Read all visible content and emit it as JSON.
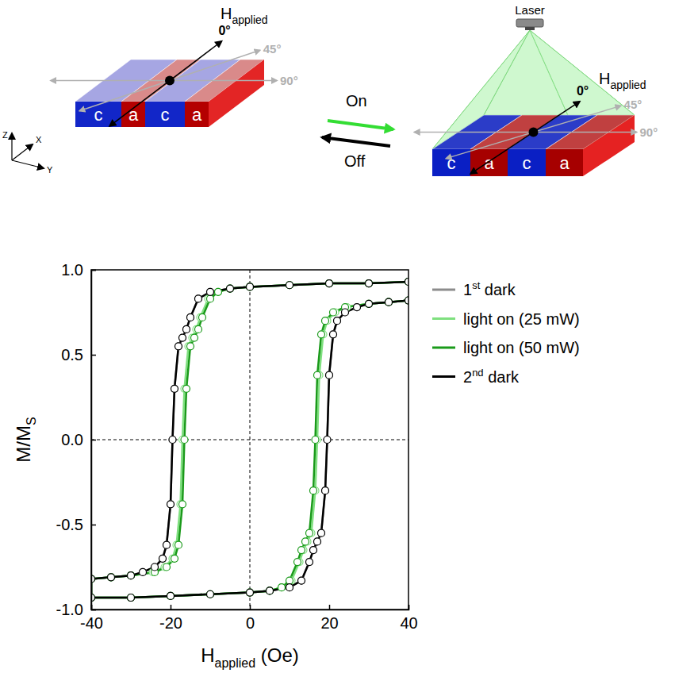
{
  "chart_data": {
    "type": "line",
    "x_label": [
      "H",
      "applied",
      " (Oe)"
    ],
    "y_label": [
      "M/M",
      "S"
    ],
    "xlim": [
      -40,
      40
    ],
    "ylim": [
      -1,
      1
    ],
    "xticks": [
      -40,
      -20,
      0,
      20,
      40
    ],
    "yticks": [
      {
        "value": -1,
        "label": "-1.0"
      },
      -0.5,
      {
        "value": 0,
        "label": "0.0"
      },
      0.5,
      {
        "value": 1,
        "label": "1.0"
      }
    ],
    "reference_lines": {
      "x": [
        0
      ],
      "y": [
        0
      ]
    },
    "grid": false,
    "legend": "right",
    "series": [
      {
        "name": "1st dark",
        "color": "#8c8c8c",
        "marker": "circle",
        "line_style": "solid",
        "x": [
          40,
          30,
          20,
          10,
          0,
          -5,
          -10,
          -13,
          -15,
          -16,
          -17,
          -18,
          -19,
          -19.5,
          -20,
          -21,
          -22,
          -24,
          -27,
          -30,
          -35,
          -40,
          -40,
          -30,
          -20,
          -10,
          0,
          5,
          10,
          13,
          15,
          16,
          17,
          18,
          19,
          19.5,
          20,
          21,
          22,
          24,
          27,
          30,
          35,
          40
        ],
        "values": [
          0.93,
          0.92,
          0.92,
          0.91,
          0.9,
          0.89,
          0.87,
          0.83,
          0.72,
          0.65,
          0.6,
          0.55,
          0.3,
          0,
          -0.38,
          -0.62,
          -0.7,
          -0.75,
          -0.78,
          -0.8,
          -0.81,
          -0.82,
          -0.93,
          -0.93,
          -0.92,
          -0.91,
          -0.9,
          -0.89,
          -0.87,
          -0.83,
          -0.72,
          -0.65,
          -0.6,
          -0.55,
          -0.3,
          0,
          0.38,
          0.62,
          0.7,
          0.75,
          0.78,
          0.8,
          0.81,
          0.82
        ]
      },
      {
        "name": "light on (25 mW)",
        "color": "#7fe07f",
        "marker": "circle",
        "line_style": "solid",
        "x": [
          40,
          30,
          20,
          10,
          0,
          -5,
          -8,
          -10.5,
          -12.5,
          -13.5,
          -14.5,
          -15.5,
          -16.5,
          -17,
          -17.5,
          -18.5,
          -19.5,
          -21.5,
          -24.5,
          -30,
          -35,
          -40,
          -40,
          -30,
          -20,
          -10,
          0,
          5,
          8,
          10.5,
          12.5,
          13.5,
          14.5,
          15.5,
          16.5,
          17,
          17.5,
          18.5,
          19.5,
          21.5,
          24.5,
          30,
          35,
          40
        ],
        "values": [
          0.93,
          0.92,
          0.92,
          0.91,
          0.9,
          0.89,
          0.87,
          0.83,
          0.72,
          0.65,
          0.6,
          0.55,
          0.3,
          0,
          -0.38,
          -0.62,
          -0.7,
          -0.75,
          -0.78,
          -0.8,
          -0.81,
          -0.82,
          -0.93,
          -0.93,
          -0.92,
          -0.91,
          -0.9,
          -0.89,
          -0.87,
          -0.83,
          -0.72,
          -0.65,
          -0.6,
          -0.55,
          -0.3,
          0,
          0.38,
          0.62,
          0.7,
          0.75,
          0.78,
          0.8,
          0.81,
          0.82
        ]
      },
      {
        "name": "light on (50 mW)",
        "color": "#1a9a1a",
        "marker": "circle",
        "line_style": "solid",
        "x": [
          40,
          30,
          20,
          10,
          0,
          -5,
          -8,
          -10,
          -12,
          -13,
          -14,
          -15,
          -16,
          -16.5,
          -17,
          -18,
          -19,
          -21,
          -24,
          -30,
          -35,
          -40,
          -40,
          -30,
          -20,
          -10,
          0,
          5,
          8,
          10,
          12,
          13,
          14,
          15,
          16,
          16.5,
          17,
          18,
          19,
          21,
          24,
          30,
          35,
          40
        ],
        "values": [
          0.93,
          0.92,
          0.92,
          0.91,
          0.9,
          0.89,
          0.87,
          0.83,
          0.72,
          0.65,
          0.6,
          0.55,
          0.3,
          0,
          -0.38,
          -0.62,
          -0.7,
          -0.75,
          -0.78,
          -0.8,
          -0.81,
          -0.82,
          -0.93,
          -0.93,
          -0.92,
          -0.91,
          -0.9,
          -0.89,
          -0.87,
          -0.83,
          -0.72,
          -0.65,
          -0.6,
          -0.55,
          -0.3,
          0,
          0.38,
          0.62,
          0.7,
          0.75,
          0.78,
          0.8,
          0.81,
          0.82
        ]
      },
      {
        "name": "2nd dark",
        "color": "#000000",
        "marker": "circle",
        "line_style": "solid",
        "x": [
          40,
          30,
          20,
          10,
          0,
          -5,
          -10,
          -13,
          -15,
          -16,
          -17,
          -18,
          -19,
          -19.5,
          -20,
          -21,
          -22,
          -24,
          -27,
          -30,
          -35,
          -40,
          -40,
          -30,
          -20,
          -10,
          0,
          5,
          10,
          13,
          15,
          16,
          17,
          18,
          19,
          19.5,
          20,
          21,
          22,
          24,
          27,
          30,
          35,
          40
        ],
        "values": [
          0.93,
          0.92,
          0.92,
          0.91,
          0.9,
          0.89,
          0.87,
          0.83,
          0.72,
          0.65,
          0.6,
          0.55,
          0.3,
          0,
          -0.38,
          -0.62,
          -0.7,
          -0.75,
          -0.78,
          -0.8,
          -0.81,
          -0.82,
          -0.93,
          -0.93,
          -0.92,
          -0.91,
          -0.9,
          -0.89,
          -0.87,
          -0.83,
          -0.72,
          -0.65,
          -0.6,
          -0.55,
          -0.3,
          0,
          0.38,
          0.62,
          0.7,
          0.75,
          0.78,
          0.8,
          0.81,
          0.82
        ]
      }
    ]
  },
  "diagram": {
    "left_domains": [
      "c",
      "a",
      "c",
      "a"
    ],
    "right_domains": [
      "c",
      "a",
      "c",
      "a"
    ],
    "field_label": [
      "H",
      "applied"
    ],
    "angles": [
      "0°",
      "45°",
      "90°"
    ],
    "axes": [
      "Z",
      "X",
      "Y"
    ],
    "on": "On",
    "off": "Off",
    "laser": "Laser"
  }
}
